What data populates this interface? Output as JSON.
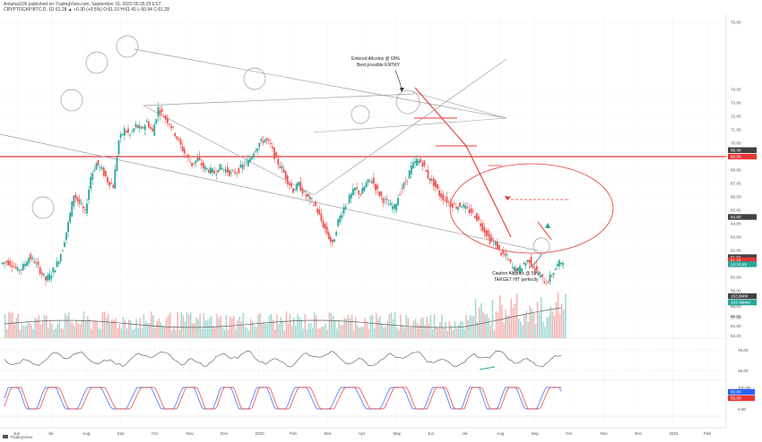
{
  "header": {
    "author_line": "Anlamal100 published on TradingView.com, September 16, 2020 00:35:25 EST",
    "symbol_line": "CRYPTOCAP:BTC.D, 1D 61.28 ▲ +0.30 (+0.5%) O:61.10 H:61.41 L:60.94 C:61.28"
  },
  "footer": {
    "brand": "TradingView"
  },
  "colors": {
    "up": "#26a69a",
    "down": "#ef5350",
    "resistance": "#e53935",
    "trend": "#9e9e9e"
  },
  "chart_data": {
    "type": "candlestick",
    "symbol": "CRYPTOCAP:BTC.D",
    "interval": "1D",
    "months": [
      "Jun",
      "Jul",
      "Aug",
      "Sep",
      "Oct",
      "Nov",
      "Dec",
      "2020",
      "Feb",
      "Mar",
      "Apr",
      "May",
      "Jun",
      "Jul",
      "Aug",
      "Sep",
      "Oct",
      "Nov",
      "Dec",
      "2021",
      "Feb"
    ],
    "price_ticks": [
      79.0,
      74.0,
      73.0,
      72.0,
      71.0,
      70.0,
      69.0,
      68.0,
      67.0,
      66.0,
      65.0,
      64.0,
      63.0,
      62.0,
      61.0,
      60.0,
      59.0,
      58.0,
      57.0
    ],
    "price_tags": [
      {
        "label": "69.48",
        "value": 69.48,
        "color": "#424242"
      },
      {
        "label": "69.00",
        "value": 69.0,
        "color": "#e53935"
      },
      {
        "label": "64.50",
        "value": 64.5,
        "color": "#424242"
      },
      {
        "label": "61.50",
        "value": 61.5,
        "color": "#424242"
      },
      {
        "label": "61.28",
        "value": 61.28,
        "color": "#e53935"
      },
      {
        "label": "14:26:59",
        "value": 60.98,
        "color": "#26a69a"
      }
    ],
    "volume_ticks": [
      "56.00",
      "55.00",
      "54.00",
      "53.00"
    ],
    "volume_tags": [
      {
        "label": "163.9MM",
        "color": "#424242"
      },
      {
        "label": "104.39MM",
        "color": "#26a69a"
      }
    ],
    "rsi_ticks": [
      "75.00",
      "25.00"
    ],
    "stoch_ticks": [
      "100.00",
      "50.00",
      "0.00"
    ],
    "stoch_tags": [
      {
        "label": "60.00",
        "color": "#2962ff"
      },
      {
        "label": "55.00",
        "color": "#e53935"
      }
    ],
    "resistance_level": 69.0,
    "annotations": {
      "entry": [
        "Entered Altcoins @ 69%",
        "Best possible ENTRY"
      ],
      "target": [
        "Caution Altcoins @ 59%",
        "TARGET HIT perfectly"
      ]
    },
    "price_series": [
      61.2,
      61.0,
      60.5,
      60.8,
      61.5,
      61.2,
      60.5,
      59.8,
      60.3,
      61.0,
      62.2,
      64.0,
      66.2,
      65.5,
      64.8,
      67.5,
      68.5,
      68.0,
      67.2,
      66.8,
      70.2,
      71.0,
      70.6,
      71.3,
      71.0,
      71.6,
      70.8,
      72.6,
      72.0,
      71.5,
      70.7,
      69.8,
      69.0,
      68.4,
      68.8,
      68.2,
      68.0,
      67.8,
      68.2,
      68.0,
      67.7,
      67.9,
      68.3,
      68.6,
      69.4,
      70.0,
      70.3,
      69.8,
      68.7,
      68.1,
      67.2,
      66.5,
      66.9,
      66.2,
      65.8,
      65.3,
      64.2,
      63.3,
      62.4,
      64.2,
      65.2,
      65.9,
      66.6,
      66.2,
      67.0,
      67.3,
      66.4,
      65.8,
      65.4,
      65.2,
      66.4,
      67.1,
      68.2,
      68.7,
      68.5,
      67.5,
      67.0,
      66.2,
      65.8,
      65.5,
      65.3,
      65.4,
      65.0,
      64.8,
      64.2,
      63.5,
      62.8,
      62.5,
      61.8,
      61.5,
      60.7,
      60.5,
      61.0,
      61.3,
      60.6,
      60.0,
      59.6,
      60.2,
      60.9,
      61.3
    ]
  }
}
